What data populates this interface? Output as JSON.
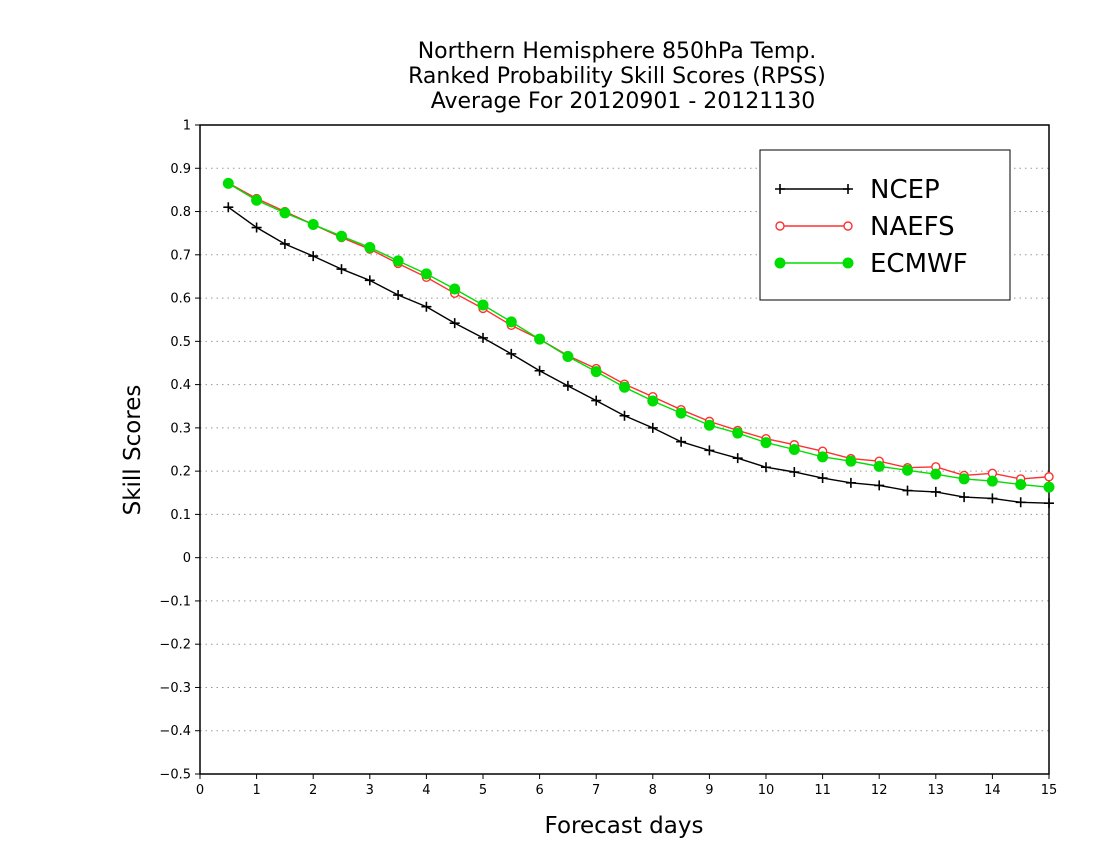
{
  "chart_data": {
    "type": "line",
    "title": [
      "Northern Hemisphere 850hPa Temp.",
      "Ranked Probability Skill Scores (RPSS)",
      "Average For 20120901 - 20121130"
    ],
    "xlabel": "Forecast days",
    "ylabel": "Skill Scores",
    "xlim": [
      0,
      15
    ],
    "ylim": [
      -0.5,
      1
    ],
    "xticks": [
      "0",
      "1",
      "2",
      "3",
      "4",
      "5",
      "6",
      "7",
      "8",
      "9",
      "10",
      "11",
      "12",
      "13",
      "14",
      "15"
    ],
    "yticks": [
      "−0.5",
      "−0.4",
      "−0.3",
      "−0.2",
      "−0.1",
      "0",
      "0.1",
      "0.2",
      "0.3",
      "0.4",
      "0.5",
      "0.6",
      "0.7",
      "0.8",
      "0.9",
      "1"
    ],
    "grid": "horizontal dotted",
    "legend_position": "top-right",
    "x": [
      0.5,
      1,
      1.5,
      2,
      2.5,
      3,
      3.5,
      4,
      4.5,
      5,
      5.5,
      6,
      6.5,
      7,
      7.5,
      8,
      8.5,
      9,
      9.5,
      10,
      10.5,
      11,
      11.5,
      12,
      12.5,
      13,
      13.5,
      14,
      14.5,
      15
    ],
    "series": [
      {
        "name": "NCEP",
        "color": "#000000",
        "marker": "plus",
        "values": [
          0.81,
          0.763,
          0.725,
          0.697,
          0.667,
          0.641,
          0.607,
          0.58,
          0.542,
          0.508,
          0.471,
          0.432,
          0.397,
          0.363,
          0.328,
          0.3,
          0.268,
          0.248,
          0.23,
          0.209,
          0.198,
          0.184,
          0.173,
          0.167,
          0.155,
          0.152,
          0.14,
          0.137,
          0.128,
          0.126
        ]
      },
      {
        "name": "NAEFS",
        "color": "#ff3030",
        "marker": "open-circle",
        "values": [
          0.866,
          0.83,
          0.8,
          0.77,
          0.74,
          0.713,
          0.68,
          0.648,
          0.611,
          0.576,
          0.537,
          0.505,
          0.467,
          0.437,
          0.401,
          0.372,
          0.342,
          0.315,
          0.294,
          0.275,
          0.261,
          0.246,
          0.229,
          0.223,
          0.208,
          0.21,
          0.19,
          0.195,
          0.182,
          0.187
        ]
      },
      {
        "name": "ECMWF",
        "color": "#00dd00",
        "marker": "filled-circle",
        "values": [
          0.865,
          0.826,
          0.797,
          0.77,
          0.743,
          0.717,
          0.686,
          0.656,
          0.621,
          0.584,
          0.545,
          0.505,
          0.465,
          0.43,
          0.394,
          0.362,
          0.334,
          0.306,
          0.288,
          0.266,
          0.25,
          0.233,
          0.223,
          0.211,
          0.202,
          0.193,
          0.182,
          0.177,
          0.169,
          0.163
        ]
      }
    ]
  }
}
